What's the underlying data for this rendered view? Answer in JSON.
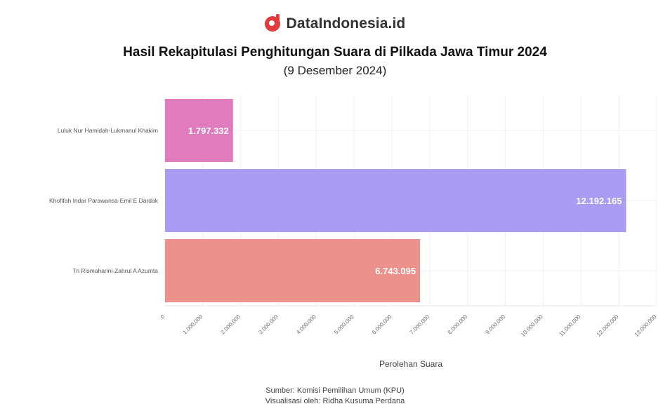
{
  "brand": {
    "name": "DataIndonesia.id"
  },
  "title": "Hasil Rekapitulasi Penghitungan Suara di Pilkada Jawa Timur 2024",
  "subtitle": "(9 Desember 2024)",
  "footer": {
    "source": "Sumber: Komisi Pemilihan Umum (KPU)",
    "credit": "Visualisasi oleh: Ridha Kusuma Perdana"
  },
  "chart_data": {
    "type": "bar",
    "orientation": "horizontal",
    "categories": [
      "Luluk Nur Hamidah-Lukmanul Khakim",
      "Khofifah Indar Parawansa-Emil E Dardak",
      "Tri Rismaharini-Zahrul A Azumta"
    ],
    "values": [
      1797332,
      12192165,
      6743095
    ],
    "value_labels": [
      "1.797.332",
      "12.192.165",
      "6.743.095"
    ],
    "colors": [
      "#e07bbd",
      "#a99cf2",
      "#ec918c"
    ],
    "xlabel": "Perolehan Suara",
    "ylabel": "",
    "xlim": [
      0,
      13000000
    ],
    "xticks": [
      0,
      1000000,
      2000000,
      3000000,
      4000000,
      5000000,
      6000000,
      7000000,
      8000000,
      9000000,
      10000000,
      11000000,
      12000000,
      13000000
    ],
    "xtick_labels": [
      "0",
      "1.000.000",
      "2.000.000",
      "3.000.000",
      "4.000.000",
      "5.000.000",
      "6.000.000",
      "7.000.000",
      "8.000.000",
      "9.000.000",
      "10.000.000",
      "11.000.000",
      "12.000.000",
      "13.000.000"
    ],
    "grid": true
  }
}
